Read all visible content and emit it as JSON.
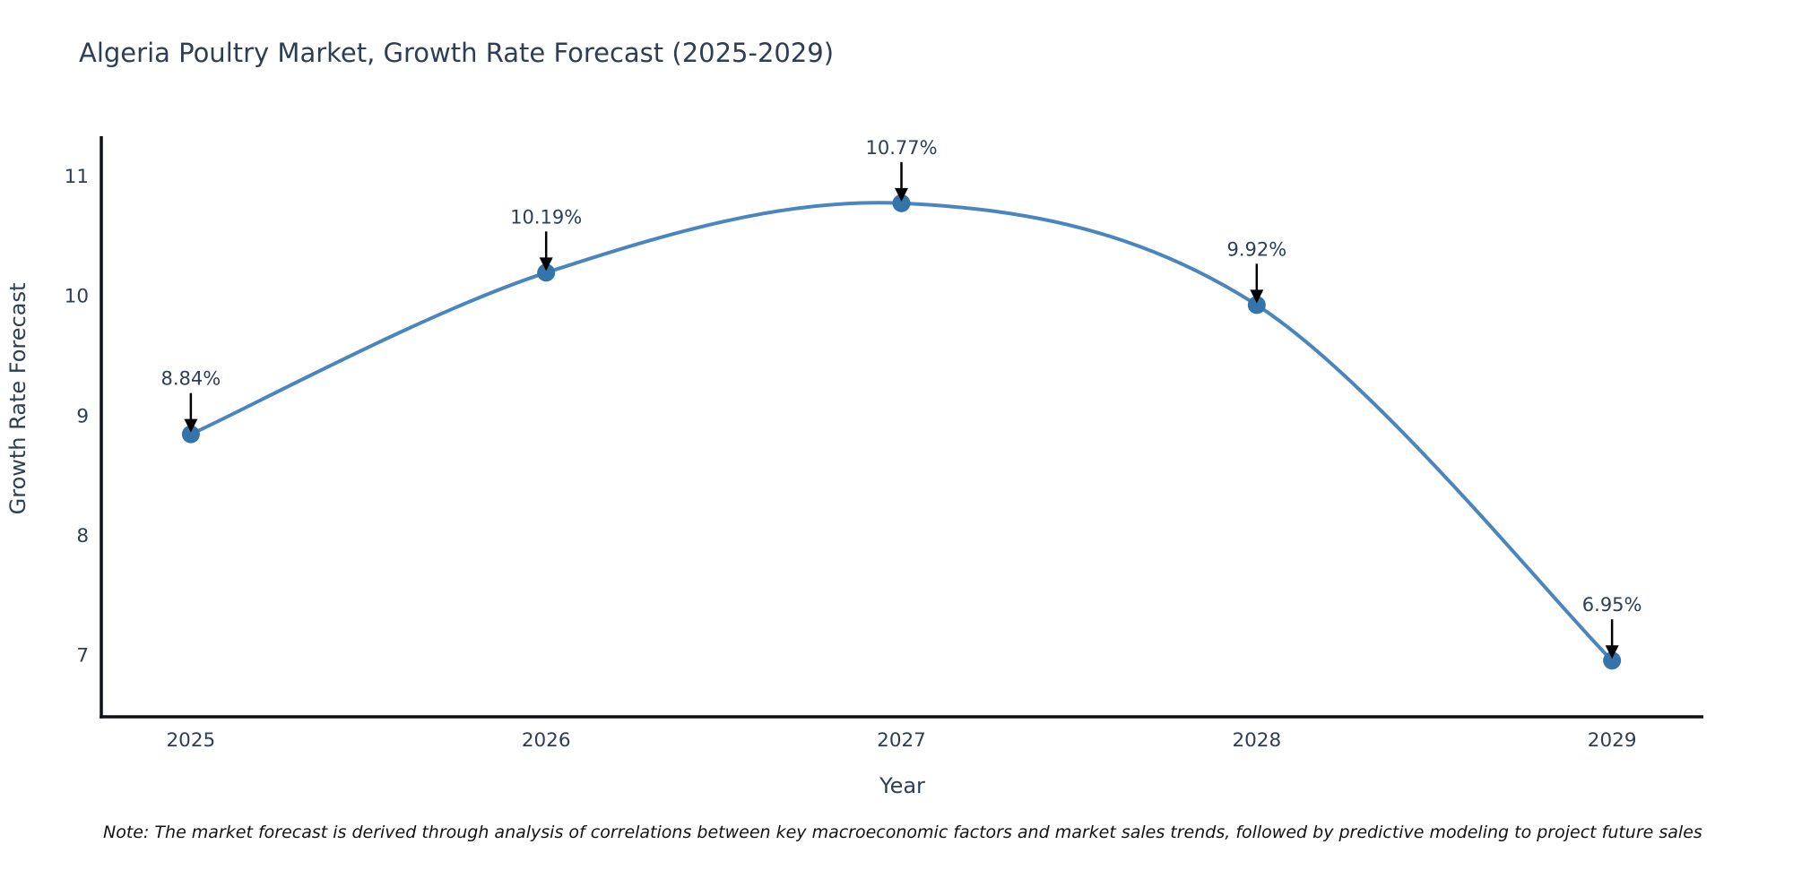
{
  "title": "Algeria Poultry Market, Growth Rate Forecast (2025-2029)",
  "note": "Note: The market forecast is derived through analysis of correlations between key macroeconomic factors and market sales trends, followed by predictive modeling to project future sales",
  "chart_data": {
    "type": "line",
    "title": "Algeria Poultry Market, Growth Rate Forecast (2025-2029)",
    "xlabel": "Year",
    "ylabel": "Growth Rate Forecast",
    "x": [
      2025,
      2026,
      2027,
      2028,
      2029
    ],
    "values": [
      8.84,
      10.19,
      10.77,
      9.92,
      6.95
    ],
    "point_labels": [
      "8.84%",
      "10.19%",
      "10.77%",
      "9.92%",
      "6.95%"
    ],
    "xticks": [
      "2025",
      "2026",
      "2027",
      "2028",
      "2029"
    ],
    "yticks": [
      7,
      8,
      9,
      10,
      11
    ],
    "xlim": [
      2024.748,
      2029.257
    ],
    "ylim": [
      6.48,
      11.33
    ],
    "grid": false,
    "legend_position": "none",
    "line_color": "#4a86bd",
    "marker_color": "#3573ab",
    "text_color": "#2d3e55",
    "axis_color": "#0d1117",
    "annotation_color": "#2d3e55",
    "arrow_color": "#000000"
  }
}
